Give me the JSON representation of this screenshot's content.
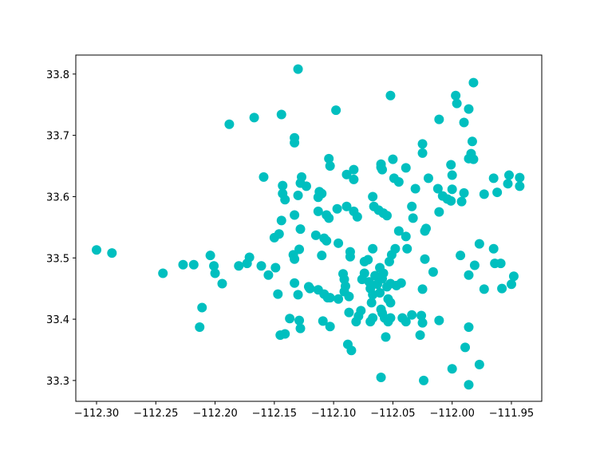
{
  "chart_data": {
    "type": "scatter",
    "color": "#00bfbf",
    "xlim": [
      -112.3175,
      -111.9244
    ],
    "ylim": [
      33.266,
      33.831
    ],
    "xticks": [
      {
        "value": -112.3,
        "label": "−112.30"
      },
      {
        "value": -112.25,
        "label": "−112.25"
      },
      {
        "value": -112.2,
        "label": "−112.20"
      },
      {
        "value": -112.15,
        "label": "−112.15"
      },
      {
        "value": -112.1,
        "label": "−112.10"
      },
      {
        "value": -112.05,
        "label": "−112.05"
      },
      {
        "value": -112.0,
        "label": "−112.00"
      },
      {
        "value": -111.95,
        "label": "−111.95"
      }
    ],
    "yticks": [
      33.3,
      33.4,
      33.5,
      33.6,
      33.7,
      33.8
    ],
    "x": [
      -112.3,
      -112.287,
      -112.244,
      -112.227,
      -112.218,
      -112.204,
      -112.201,
      -112.2,
      -112.194,
      -112.211,
      -112.213,
      -112.188,
      -112.167,
      -112.18,
      -112.173,
      -112.171,
      -112.161,
      -112.155,
      -112.149,
      -112.159,
      -112.144,
      -112.13,
      -112.133,
      -112.133,
      -112.143,
      -112.143,
      -112.141,
      -112.144,
      -112.15,
      -112.146,
      -112.133,
      -112.13,
      -112.127,
      -112.128,
      -112.123,
      -112.128,
      -112.134,
      -112.129,
      -112.133,
      -112.147,
      -112.133,
      -112.121,
      -112.13,
      -112.137,
      -112.129,
      -112.128,
      -112.141,
      -112.145,
      -112.12,
      -112.113,
      -112.115,
      -112.108,
      -112.106,
      -112.113,
      -112.112,
      -112.11,
      -112.113,
      -112.106,
      -112.104,
      -112.11,
      -112.096,
      -112.098,
      -112.104,
      -112.103,
      -112.097,
      -112.089,
      -112.083,
      -112.083,
      -112.089,
      -112.083,
      -112.08,
      -112.086,
      -112.086,
      -112.088,
      -112.085,
      -112.108,
      -112.105,
      -112.103,
      -112.109,
      -112.103,
      -112.096,
      -112.091,
      -112.092,
      -112.091,
      -112.09,
      -112.087,
      -112.087,
      -112.081,
      -112.079,
      -112.077,
      -112.076,
      -112.074,
      -112.074,
      -112.071,
      -112.07,
      -112.069,
      -112.067,
      -112.065,
      -112.063,
      -112.059,
      -112.061,
      -112.055,
      -112.052,
      -112.047,
      -112.043,
      -112.058,
      -112.061,
      -112.053,
      -112.051,
      -112.048,
      -112.067,
      -112.068,
      -112.069,
      -112.067,
      -112.059,
      -112.06,
      -112.054,
      -112.052,
      -112.057,
      -112.054,
      -112.056,
      -112.06,
      -112.052,
      -112.042,
      -112.039,
      -112.034,
      -112.026,
      -112.025,
      -112.027,
      -112.025,
      -112.023,
      -112.016,
      -112.011,
      -112.024,
      -112.067,
      -112.066,
      -112.062,
      -112.058,
      -112.055,
      -112.06,
      -112.06,
      -112.059,
      -112.052,
      -112.05,
      -112.049,
      -112.045,
      -112.039,
      -112.034,
      -112.033,
      -112.031,
      -112.045,
      -112.039,
      -112.038,
      -112.025,
      -112.025,
      -112.023,
      -112.022,
      -112.02,
      -112.012,
      -112.011,
      -112.011,
      -112.008,
      -112.004,
      -112.001,
      -112.0,
      -112.0,
      -112.001,
      -111.997,
      -111.996,
      -111.99,
      -111.99,
      -111.992,
      -111.986,
      -111.982,
      -111.986,
      -111.983,
      -111.982,
      -111.984,
      -111.977,
      -111.993,
      -111.981,
      -111.986,
      -111.973,
      -111.965,
      -111.962,
      -111.965,
      -111.964,
      -111.959,
      -111.973,
      -111.958,
      -111.952,
      -111.953,
      -111.943,
      -111.943,
      -111.948,
      -111.95,
      -111.986,
      -111.989,
      -111.977,
      -112.0,
      -111.986
    ],
    "y": [
      33.513,
      33.508,
      33.475,
      33.489,
      33.489,
      33.504,
      33.487,
      33.475,
      33.458,
      33.419,
      33.387,
      33.718,
      33.729,
      33.487,
      33.491,
      33.501,
      33.487,
      33.472,
      33.484,
      33.632,
      33.734,
      33.808,
      33.696,
      33.688,
      33.618,
      33.605,
      33.595,
      33.561,
      33.533,
      33.539,
      33.57,
      33.602,
      33.632,
      33.622,
      33.617,
      33.547,
      33.505,
      33.514,
      33.498,
      33.441,
      33.459,
      33.453,
      33.44,
      33.401,
      33.398,
      33.385,
      33.376,
      33.374,
      33.45,
      33.448,
      33.537,
      33.532,
      33.528,
      33.599,
      33.608,
      33.605,
      33.576,
      33.57,
      33.565,
      33.504,
      33.524,
      33.741,
      33.662,
      33.65,
      33.58,
      33.636,
      33.628,
      33.644,
      33.584,
      33.576,
      33.567,
      33.51,
      33.502,
      33.359,
      33.349,
      33.441,
      33.435,
      33.435,
      33.397,
      33.388,
      33.433,
      33.445,
      33.474,
      33.465,
      33.454,
      33.437,
      33.411,
      33.396,
      33.405,
      33.414,
      33.465,
      33.475,
      33.494,
      33.497,
      33.461,
      33.45,
      33.44,
      33.471,
      33.457,
      33.466,
      33.443,
      33.453,
      33.458,
      33.455,
      33.459,
      33.475,
      33.484,
      33.494,
      33.505,
      33.515,
      33.515,
      33.427,
      33.396,
      33.402,
      33.41,
      33.416,
      33.433,
      33.427,
      33.402,
      33.396,
      33.371,
      33.305,
      33.402,
      33.402,
      33.396,
      33.407,
      33.406,
      33.394,
      33.374,
      33.449,
      33.498,
      33.477,
      33.398,
      33.3,
      33.6,
      33.584,
      33.578,
      33.573,
      33.569,
      33.653,
      33.648,
      33.644,
      33.765,
      33.661,
      33.63,
      33.624,
      33.647,
      33.584,
      33.565,
      33.613,
      33.544,
      33.535,
      33.515,
      33.671,
      33.686,
      33.544,
      33.548,
      33.63,
      33.613,
      33.575,
      33.726,
      33.601,
      33.596,
      33.652,
      33.635,
      33.612,
      33.593,
      33.765,
      33.752,
      33.721,
      33.606,
      33.592,
      33.743,
      33.786,
      33.662,
      33.69,
      33.661,
      33.67,
      33.523,
      33.504,
      33.488,
      33.472,
      33.604,
      33.63,
      33.607,
      33.515,
      33.491,
      33.491,
      33.449,
      33.45,
      33.635,
      33.621,
      33.631,
      33.617,
      33.47,
      33.457,
      33.387,
      33.354,
      33.326,
      33.319,
      33.293
    ]
  }
}
